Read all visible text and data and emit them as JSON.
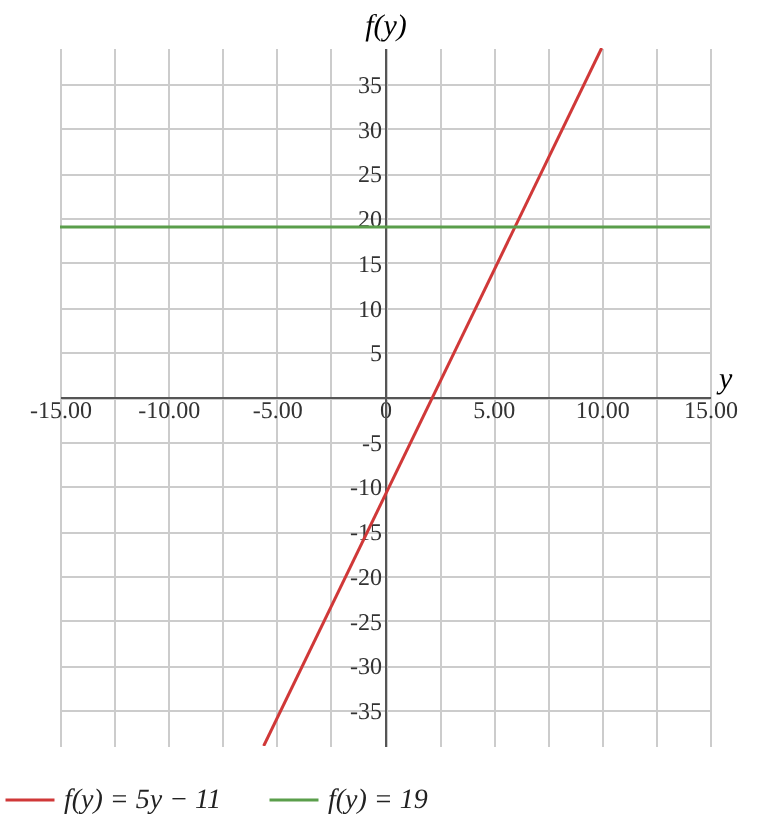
{
  "chart_data": {
    "type": "line",
    "xlabel": "y",
    "ylabel": "f(y)",
    "xlim": [
      -15,
      15
    ],
    "ylim": [
      -39,
      39
    ],
    "xticks": [
      {
        "value": -15,
        "label": "-15.00"
      },
      {
        "value": -12.5,
        "label": null
      },
      {
        "value": -10,
        "label": "-10.00"
      },
      {
        "value": -7.5,
        "label": null
      },
      {
        "value": -5,
        "label": "-5.00"
      },
      {
        "value": -2.5,
        "label": null
      },
      0,
      {
        "value": 2.5,
        "label": null
      },
      {
        "value": 5,
        "label": "5.00"
      },
      {
        "value": 7.5,
        "label": null
      },
      {
        "value": 10,
        "label": "10.00"
      },
      {
        "value": 12.5,
        "label": null
      },
      {
        "value": 15,
        "label": "15.00"
      }
    ],
    "yticks": [
      -35,
      -30,
      -25,
      -20,
      -15,
      -10,
      -5,
      {
        "value": 0,
        "label": null
      },
      5,
      10,
      15,
      20,
      25,
      30,
      35
    ],
    "grid": true,
    "legend": "bottom",
    "series": [
      {
        "name": "f(y) = 5y − 11",
        "color": "#d03838",
        "x": [
          -5.6,
          10
        ],
        "values": [
          -39,
          39
        ]
      },
      {
        "name": "f(y) = 19",
        "color": "#5a9e4b",
        "x": [
          -15,
          15
        ],
        "values": [
          19,
          19
        ]
      }
    ]
  }
}
